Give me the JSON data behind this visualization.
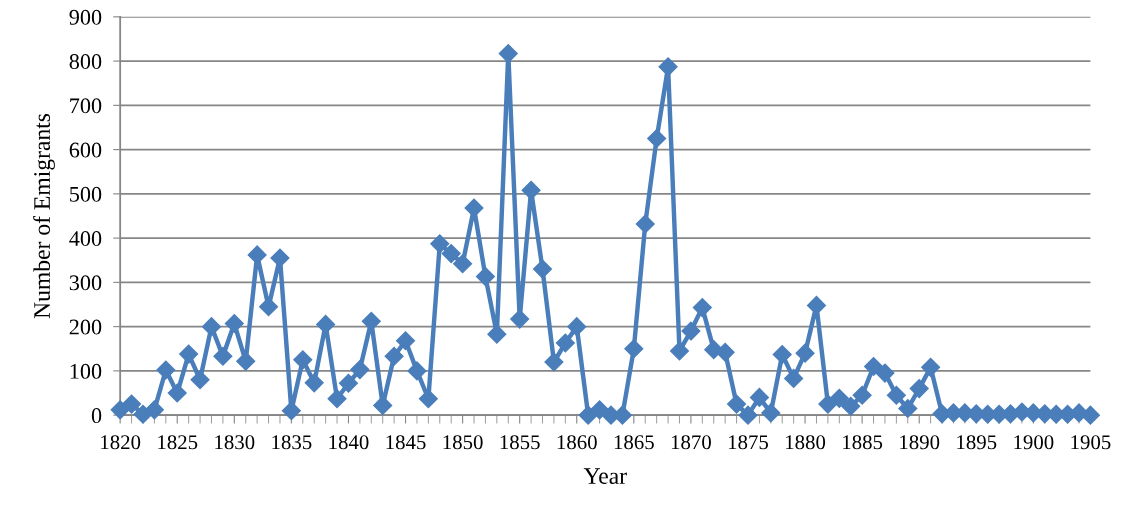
{
  "chart_data": {
    "type": "line",
    "xlabel": "Year",
    "ylabel": "Number of Emigrants",
    "x": [
      1820,
      1821,
      1822,
      1823,
      1824,
      1825,
      1826,
      1827,
      1828,
      1829,
      1830,
      1831,
      1832,
      1833,
      1834,
      1835,
      1836,
      1837,
      1838,
      1839,
      1840,
      1841,
      1842,
      1843,
      1844,
      1845,
      1846,
      1847,
      1848,
      1849,
      1850,
      1851,
      1852,
      1853,
      1854,
      1855,
      1856,
      1857,
      1858,
      1859,
      1860,
      1861,
      1862,
      1863,
      1864,
      1865,
      1866,
      1867,
      1868,
      1869,
      1870,
      1871,
      1872,
      1873,
      1874,
      1875,
      1876,
      1877,
      1878,
      1879,
      1880,
      1881,
      1882,
      1883,
      1884,
      1885,
      1886,
      1887,
      1888,
      1889,
      1890,
      1891,
      1892,
      1893,
      1894,
      1895,
      1896,
      1897,
      1898,
      1899,
      1900,
      1901,
      1902,
      1903,
      1904,
      1905
    ],
    "series": [
      {
        "color": "#4a7ebb",
        "values": [
          12,
          25,
          2,
          12,
          102,
          50,
          138,
          80,
          200,
          133,
          207,
          122,
          362,
          245,
          355,
          10,
          125,
          73,
          205,
          37,
          72,
          103,
          212,
          22,
          133,
          168,
          100,
          37,
          387,
          365,
          342,
          468,
          313,
          183,
          817,
          217,
          508,
          330,
          120,
          163,
          200,
          0,
          12,
          0,
          0,
          150,
          432,
          625,
          787,
          145,
          190,
          243,
          148,
          142,
          25,
          0,
          40,
          5,
          137,
          83,
          140,
          248,
          25,
          38,
          20,
          45,
          110,
          95,
          45,
          15,
          60,
          108,
          3,
          5,
          5,
          3,
          2,
          2,
          3,
          7,
          5,
          3,
          2,
          2,
          5,
          0
        ]
      }
    ],
    "xlim": [
      1820,
      1905
    ],
    "xticks": [
      1820,
      1825,
      1830,
      1835,
      1840,
      1845,
      1850,
      1855,
      1860,
      1865,
      1870,
      1875,
      1880,
      1885,
      1890,
      1895,
      1900,
      1905
    ],
    "ylim": [
      0,
      900
    ],
    "yticks": [
      0,
      100,
      200,
      300,
      400,
      500,
      600,
      700,
      800,
      900
    ],
    "grid": "y",
    "marker": "diamond",
    "line_style": "solid"
  }
}
